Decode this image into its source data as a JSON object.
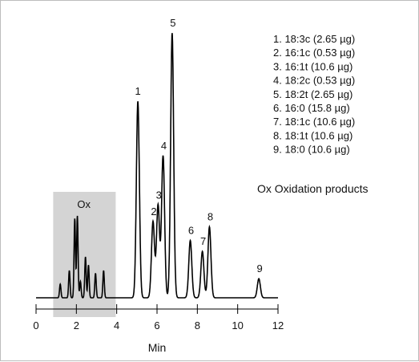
{
  "chart_data": {
    "type": "line",
    "xlabel": "Min",
    "ylabel": "",
    "xlim": [
      0,
      12
    ],
    "xticks": [
      "0",
      "2",
      "4",
      "6",
      "8",
      "10",
      "12"
    ],
    "grid": false,
    "shaded_region": {
      "label": "Ox",
      "x_range": [
        0.85,
        3.95
      ]
    },
    "peaks": [
      {
        "label": "1",
        "rt": 5.05,
        "height": 0.72
      },
      {
        "label": "2",
        "rt": 5.8,
        "height": 0.28
      },
      {
        "label": "3",
        "rt": 6.05,
        "height": 0.34
      },
      {
        "label": "4",
        "rt": 6.3,
        "height": 0.52
      },
      {
        "label": "5",
        "rt": 6.75,
        "height": 0.97
      },
      {
        "label": "6",
        "rt": 7.65,
        "height": 0.21
      },
      {
        "label": "7",
        "rt": 8.25,
        "height": 0.17
      },
      {
        "label": "8",
        "rt": 8.6,
        "height": 0.26
      },
      {
        "label": "9",
        "rt": 11.05,
        "height": 0.07
      }
    ],
    "ox_peaks": [
      {
        "rt": 1.2,
        "height": 0.05
      },
      {
        "rt": 1.65,
        "height": 0.1
      },
      {
        "rt": 1.92,
        "height": 0.29
      },
      {
        "rt": 2.05,
        "height": 0.3
      },
      {
        "rt": 2.2,
        "height": 0.06
      },
      {
        "rt": 2.45,
        "height": 0.15
      },
      {
        "rt": 2.6,
        "height": 0.12
      },
      {
        "rt": 2.95,
        "height": 0.09
      },
      {
        "rt": 3.35,
        "height": 0.1
      }
    ],
    "legend": [
      "1.  18:3c (2.65 µg)",
      "2.  16:1c (0.53 µg)",
      "3.  16:1t (10.6 µg)",
      "4.  18:2c (0.53 µg)",
      "5.  18:2t (2.65 µg)",
      "6.  16:0 (15.8 µg)",
      "7.  18:1c (10.6 µg)",
      "8.  18:1t (10.6 µg)",
      "9.  18:0 (10.6 µg)"
    ],
    "ox_note": "Ox  Oxidation products",
    "colors": {
      "trace": "#000000",
      "shade": "#d4d4d4"
    }
  }
}
